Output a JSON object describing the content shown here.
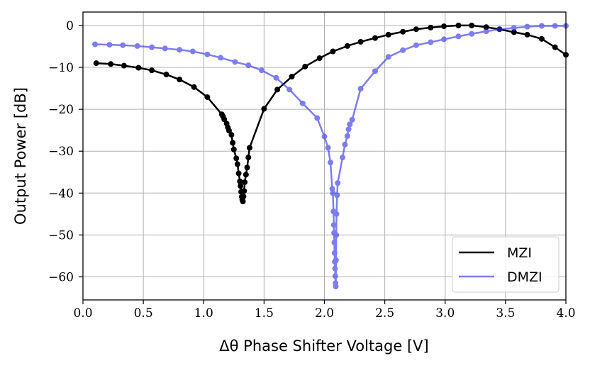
{
  "chart_data": {
    "type": "line",
    "title": "",
    "xlabel": "Δθ Phase Shifter Voltage [V]",
    "ylabel": "Output Power [dB]",
    "xlim": [
      0.0,
      4.0
    ],
    "ylim": [
      -65.5,
      3.2
    ],
    "grid": true,
    "legend_position": "bottom-right",
    "xticks": [
      0.0,
      0.5,
      1.0,
      1.5,
      2.0,
      2.5,
      3.0,
      3.5,
      4.0
    ],
    "xtick_labels": [
      "0.0",
      "0.5",
      "1.0",
      "1.5",
      "2.0",
      "2.5",
      "3.0",
      "3.5",
      "4.0"
    ],
    "yticks": [
      0,
      -10,
      -20,
      -30,
      -40,
      -50,
      -60
    ],
    "ytick_labels": [
      "0",
      "−10",
      "−20",
      "−30",
      "−40",
      "−50",
      "−60"
    ],
    "series": [
      {
        "name": "MZI",
        "color": "#000000",
        "opacity": 1.0,
        "points": [
          [
            0.11,
            -9.0
          ],
          [
            0.23,
            -9.2
          ],
          [
            0.34,
            -9.6
          ],
          [
            0.46,
            -10.1
          ],
          [
            0.57,
            -10.7
          ],
          [
            0.69,
            -11.7
          ],
          [
            0.8,
            -12.9
          ],
          [
            0.92,
            -14.7
          ],
          [
            1.03,
            -17.1
          ],
          [
            1.15,
            -21.2
          ],
          [
            1.16,
            -21.7
          ],
          [
            1.17,
            -22.4
          ],
          [
            1.19,
            -23.4
          ],
          [
            1.2,
            -24.3
          ],
          [
            1.21,
            -25.1
          ],
          [
            1.23,
            -26.1
          ],
          [
            1.24,
            -28.0
          ],
          [
            1.25,
            -29.6
          ],
          [
            1.27,
            -31.7
          ],
          [
            1.28,
            -33.1
          ],
          [
            1.29,
            -35.3
          ],
          [
            1.3,
            -37.2
          ],
          [
            1.305,
            -38.3
          ],
          [
            1.31,
            -39.7
          ],
          [
            1.315,
            -40.9
          ],
          [
            1.32,
            -41.6
          ],
          [
            1.325,
            -42.0
          ],
          [
            1.33,
            -40.8
          ],
          [
            1.335,
            -39.5
          ],
          [
            1.34,
            -37.4
          ],
          [
            1.35,
            -35.6
          ],
          [
            1.36,
            -33.9
          ],
          [
            1.37,
            -31.5
          ],
          [
            1.38,
            -29.2
          ],
          [
            1.5,
            -19.9
          ],
          [
            1.61,
            -15.3
          ],
          [
            1.73,
            -12.2
          ],
          [
            1.84,
            -9.8
          ],
          [
            1.96,
            -7.8
          ],
          [
            2.07,
            -6.2
          ],
          [
            2.19,
            -4.9
          ],
          [
            2.3,
            -3.9
          ],
          [
            2.42,
            -3.0
          ],
          [
            2.53,
            -2.2
          ],
          [
            2.65,
            -1.5
          ],
          [
            2.76,
            -0.9
          ],
          [
            2.88,
            -0.5
          ],
          [
            2.99,
            -0.2
          ],
          [
            3.11,
            0.0
          ],
          [
            3.22,
            0.0
          ],
          [
            3.34,
            -0.4
          ],
          [
            3.45,
            -0.9
          ],
          [
            3.57,
            -1.6
          ],
          [
            3.68,
            -2.2
          ],
          [
            3.8,
            -3.2
          ],
          [
            3.91,
            -5.2
          ],
          [
            4.0,
            -7.0
          ]
        ]
      },
      {
        "name": "DMZI",
        "color": "#2e2eea",
        "opacity": 0.62,
        "points": [
          [
            0.1,
            -4.5
          ],
          [
            0.22,
            -4.6
          ],
          [
            0.33,
            -4.7
          ],
          [
            0.45,
            -4.9
          ],
          [
            0.57,
            -5.2
          ],
          [
            0.68,
            -5.5
          ],
          [
            0.8,
            -5.8
          ],
          [
            0.91,
            -6.2
          ],
          [
            1.03,
            -6.9
          ],
          [
            1.14,
            -7.7
          ],
          [
            1.26,
            -8.7
          ],
          [
            1.37,
            -9.5
          ],
          [
            1.48,
            -10.7
          ],
          [
            1.6,
            -12.5
          ],
          [
            1.71,
            -15.3
          ],
          [
            1.82,
            -18.6
          ],
          [
            1.94,
            -22.1
          ],
          [
            2.0,
            -26.5
          ],
          [
            2.03,
            -29.2
          ],
          [
            2.05,
            -32.7
          ],
          [
            2.065,
            -39.0
          ],
          [
            2.07,
            -40.0
          ],
          [
            2.075,
            -44.4
          ],
          [
            2.078,
            -47.6
          ],
          [
            2.08,
            -49.5
          ],
          [
            2.082,
            -51.8
          ],
          [
            2.084,
            -54.3
          ],
          [
            2.086,
            -56.4
          ],
          [
            2.088,
            -58.0
          ],
          [
            2.09,
            -59.8
          ],
          [
            2.092,
            -61.5
          ],
          [
            2.094,
            -62.3
          ],
          [
            2.096,
            -56.0
          ],
          [
            2.098,
            -50.0
          ],
          [
            2.1,
            -45.0
          ],
          [
            2.105,
            -40.5
          ],
          [
            2.11,
            -37.6
          ],
          [
            2.15,
            -31.5
          ],
          [
            2.17,
            -28.4
          ],
          [
            2.19,
            -26.4
          ],
          [
            2.2,
            -24.8
          ],
          [
            2.21,
            -23.6
          ],
          [
            2.23,
            -22.5
          ],
          [
            2.3,
            -15.1
          ],
          [
            2.42,
            -10.9
          ],
          [
            2.53,
            -7.5
          ],
          [
            2.65,
            -5.9
          ],
          [
            2.76,
            -4.7
          ],
          [
            2.88,
            -4.0
          ],
          [
            2.99,
            -3.3
          ],
          [
            3.11,
            -2.6
          ],
          [
            3.22,
            -2.0
          ],
          [
            3.34,
            -1.4
          ],
          [
            3.45,
            -0.9
          ],
          [
            3.57,
            -0.6
          ],
          [
            3.68,
            -0.3
          ],
          [
            3.8,
            -0.1
          ],
          [
            3.91,
            -0.1
          ],
          [
            4.0,
            -0.1
          ]
        ]
      }
    ]
  }
}
